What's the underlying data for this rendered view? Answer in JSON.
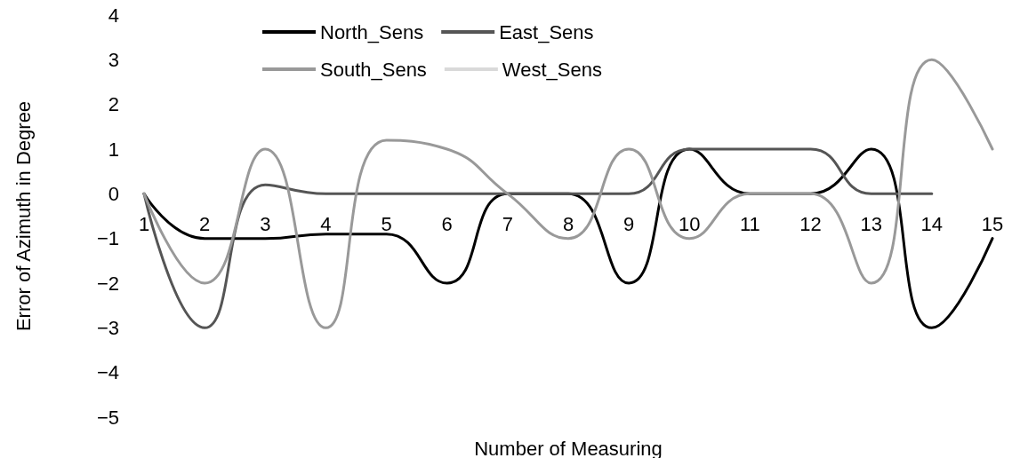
{
  "chart_data": {
    "type": "line",
    "xlabel": "Number of Measuring",
    "ylabel": "Error of Azimuth in Degree",
    "categories": [
      "1",
      "2",
      "3",
      "4",
      "5",
      "6",
      "7",
      "8",
      "9",
      "10",
      "11",
      "12",
      "13",
      "14",
      "15"
    ],
    "series": [
      {
        "name": "North_Sens",
        "color": "#000000",
        "values": [
          0,
          -1,
          -1,
          -0.9,
          -0.9,
          -2,
          0,
          0,
          -2,
          1,
          0,
          0,
          1,
          -3,
          -1
        ]
      },
      {
        "name": "East_Sens",
        "color": "#555555",
        "values": [
          0,
          -3,
          0.2,
          0,
          0,
          0,
          0,
          0,
          0,
          1,
          1,
          1,
          0,
          0,
          null
        ]
      },
      {
        "name": "South_Sens",
        "color": "#999999",
        "values": [
          0,
          -2,
          1,
          -3,
          1.2,
          1,
          0,
          -1,
          1,
          -1,
          0,
          0,
          -2,
          3,
          1
        ]
      },
      {
        "name": "West_Sens",
        "color": "#d9d9d9",
        "values": [
          null,
          null,
          null,
          null,
          null,
          null,
          null,
          null,
          null,
          null,
          null,
          null,
          null,
          null,
          null
        ]
      }
    ],
    "ylim": [
      -5,
      4
    ],
    "yticks": [
      -5,
      -4,
      -3,
      -2,
      -1,
      0,
      1,
      2,
      3,
      4
    ],
    "grid": false,
    "legend": "top",
    "marker": "none",
    "line_style": "solid"
  }
}
